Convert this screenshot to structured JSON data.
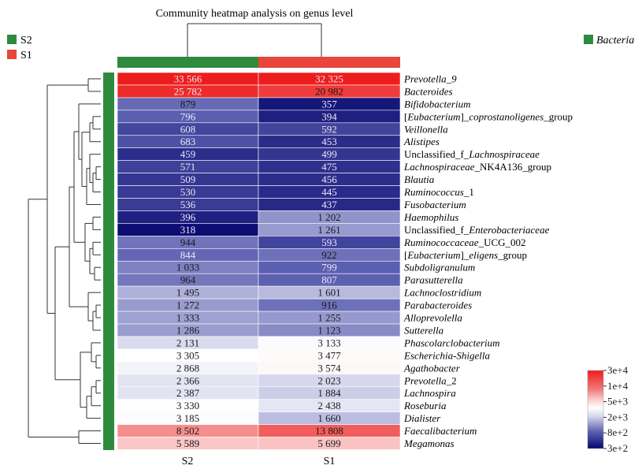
{
  "chart_data": {
    "type": "heatmap",
    "title": "Community heatmap analysis on genus level",
    "columns": [
      "S2",
      "S1"
    ],
    "group_legend": [
      {
        "name": "S2",
        "color": "#2e8b3e"
      },
      {
        "name": "S1",
        "color": "#e8453c"
      }
    ],
    "taxon_legend": {
      "name": "Bacteria",
      "color": "#2e8b3e"
    },
    "rows": [
      {
        "name_parts": [
          {
            "t": "Prevotella_9",
            "i": true
          }
        ],
        "values": [
          33566,
          32325
        ],
        "labels": [
          "33 566",
          "32 325"
        ]
      },
      {
        "name_parts": [
          {
            "t": "Bacteroides",
            "i": true
          }
        ],
        "values": [
          25782,
          20982
        ],
        "labels": [
          "25 782",
          "20 982"
        ]
      },
      {
        "name_parts": [
          {
            "t": "Bifidobacterium",
            "i": true
          }
        ],
        "values": [
          879,
          357
        ],
        "labels": [
          "879",
          "357"
        ]
      },
      {
        "name_parts": [
          {
            "t": "[",
            "i": false
          },
          {
            "t": "Eubacterium",
            "i": true
          },
          {
            "t": "]_",
            "i": false
          },
          {
            "t": "coprostanoligenes",
            "i": true
          },
          {
            "t": "_group",
            "i": false
          }
        ],
        "values": [
          796,
          394
        ],
        "labels": [
          "796",
          "394"
        ]
      },
      {
        "name_parts": [
          {
            "t": "Veillonella",
            "i": true
          }
        ],
        "values": [
          608,
          592
        ],
        "labels": [
          "608",
          "592"
        ]
      },
      {
        "name_parts": [
          {
            "t": "Alistipes",
            "i": true
          }
        ],
        "values": [
          683,
          453
        ],
        "labels": [
          "683",
          "453"
        ]
      },
      {
        "name_parts": [
          {
            "t": "Unclassified_f_",
            "i": false
          },
          {
            "t": "Lachnospiraceae",
            "i": true
          }
        ],
        "values": [
          459,
          499
        ],
        "labels": [
          "459",
          "499"
        ]
      },
      {
        "name_parts": [
          {
            "t": "Lachnospiraceae",
            "i": true
          },
          {
            "t": "_NK4A136_group",
            "i": false
          }
        ],
        "values": [
          571,
          475
        ],
        "labels": [
          "571",
          "475"
        ]
      },
      {
        "name_parts": [
          {
            "t": "Blautia",
            "i": true
          }
        ],
        "values": [
          509,
          456
        ],
        "labels": [
          "509",
          "456"
        ]
      },
      {
        "name_parts": [
          {
            "t": "Ruminococcus",
            "i": true
          },
          {
            "t": "_1",
            "i": false
          }
        ],
        "values": [
          530,
          445
        ],
        "labels": [
          "530",
          "445"
        ]
      },
      {
        "name_parts": [
          {
            "t": "Fusobacterium",
            "i": true
          }
        ],
        "values": [
          536,
          437
        ],
        "labels": [
          "536",
          "437"
        ]
      },
      {
        "name_parts": [
          {
            "t": "Haemophilus",
            "i": true
          }
        ],
        "values": [
          396,
          1202
        ],
        "labels": [
          "396",
          "1 202"
        ]
      },
      {
        "name_parts": [
          {
            "t": "Unclassified_f_",
            "i": false
          },
          {
            "t": "Enterobacteriaceae",
            "i": true
          }
        ],
        "values": [
          318,
          1261
        ],
        "labels": [
          "318",
          "1 261"
        ]
      },
      {
        "name_parts": [
          {
            "t": "Ruminococcaceae",
            "i": true
          },
          {
            "t": "_UCG_002",
            "i": false
          }
        ],
        "values": [
          944,
          593
        ],
        "labels": [
          "944",
          "593"
        ]
      },
      {
        "name_parts": [
          {
            "t": "[",
            "i": false
          },
          {
            "t": "Eubacterium",
            "i": true
          },
          {
            "t": "]_",
            "i": false
          },
          {
            "t": "eligens",
            "i": true
          },
          {
            "t": "_group",
            "i": false
          }
        ],
        "values": [
          844,
          922
        ],
        "labels": [
          "844",
          "922"
        ]
      },
      {
        "name_parts": [
          {
            "t": "Subdoligranulum",
            "i": true
          }
        ],
        "values": [
          1033,
          799
        ],
        "labels": [
          "1 033",
          "799"
        ]
      },
      {
        "name_parts": [
          {
            "t": "Parasutterella",
            "i": true
          }
        ],
        "values": [
          964,
          807
        ],
        "labels": [
          "964",
          "807"
        ]
      },
      {
        "name_parts": [
          {
            "t": "Lachnoclostridium",
            "i": true
          }
        ],
        "values": [
          1495,
          1601
        ],
        "labels": [
          "1 495",
          "1 601"
        ]
      },
      {
        "name_parts": [
          {
            "t": "Parabacteroides",
            "i": true
          }
        ],
        "values": [
          1272,
          916
        ],
        "labels": [
          "1 272",
          "916"
        ]
      },
      {
        "name_parts": [
          {
            "t": "Alloprevolella",
            "i": true
          }
        ],
        "values": [
          1333,
          1255
        ],
        "labels": [
          "1 333",
          "1 255"
        ]
      },
      {
        "name_parts": [
          {
            "t": "Sutterella",
            "i": true
          }
        ],
        "values": [
          1286,
          1123
        ],
        "labels": [
          "1 286",
          "1 123"
        ]
      },
      {
        "name_parts": [
          {
            "t": "Phascolarclobacterium",
            "i": true
          }
        ],
        "values": [
          2131,
          3133
        ],
        "labels": [
          "2 131",
          "3 133"
        ]
      },
      {
        "name_parts": [
          {
            "t": "Escherichia-Shigella",
            "i": true
          }
        ],
        "values": [
          3305,
          3477
        ],
        "labels": [
          "3 305",
          "3 477"
        ]
      },
      {
        "name_parts": [
          {
            "t": "Agathobacter",
            "i": true
          }
        ],
        "values": [
          2868,
          3574
        ],
        "labels": [
          "2 868",
          "3 574"
        ]
      },
      {
        "name_parts": [
          {
            "t": "Prevotella",
            "i": true
          },
          {
            "t": "_2",
            "i": false
          }
        ],
        "values": [
          2366,
          2023
        ],
        "labels": [
          "2 366",
          "2 023"
        ]
      },
      {
        "name_parts": [
          {
            "t": "Lachnospira",
            "i": true
          }
        ],
        "values": [
          2387,
          1884
        ],
        "labels": [
          "2 387",
          "1 884"
        ]
      },
      {
        "name_parts": [
          {
            "t": "Roseburia",
            "i": true
          }
        ],
        "values": [
          3330,
          2438
        ],
        "labels": [
          "3 330",
          "2 438"
        ]
      },
      {
        "name_parts": [
          {
            "t": "Dialister",
            "i": true
          }
        ],
        "values": [
          3185,
          1660
        ],
        "labels": [
          "3 185",
          "1 660"
        ]
      },
      {
        "name_parts": [
          {
            "t": "Faecalibacterium",
            "i": true
          }
        ],
        "values": [
          8502,
          13808
        ],
        "labels": [
          "8 502",
          "13 808"
        ]
      },
      {
        "name_parts": [
          {
            "t": "Megamonas",
            "i": true
          }
        ],
        "values": [
          5589,
          5699
        ],
        "labels": [
          "5 589",
          "5 699"
        ]
      }
    ],
    "color_scale": {
      "type": "log",
      "stops": [
        {
          "value": 300,
          "color": "#07076e"
        },
        {
          "value": 800,
          "color": "#5b5fb0"
        },
        {
          "value": 2000,
          "color": "#d4d6ec"
        },
        {
          "value": 3300,
          "color": "#ffffff"
        },
        {
          "value": 5000,
          "color": "#fbd5d5"
        },
        {
          "value": 10000,
          "color": "#f27878"
        },
        {
          "value": 30000,
          "color": "#ee1d1d"
        }
      ],
      "tick_labels": [
        "3e+4",
        "1e+4",
        "5e+3",
        "2e+3",
        "8e+2",
        "3e+2"
      ]
    }
  }
}
